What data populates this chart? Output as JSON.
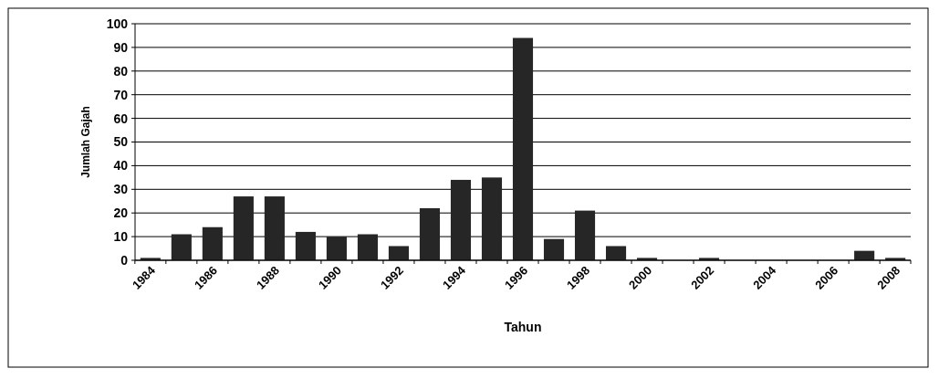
{
  "chart_data": {
    "type": "bar",
    "xlabel": "Tahun",
    "ylabel": "Jumlah Gajah",
    "categories": [
      "1984",
      null,
      "1986",
      null,
      "1988",
      null,
      "1990",
      null,
      "1992",
      null,
      "1994",
      null,
      "1996",
      null,
      "1998",
      null,
      "2000",
      null,
      "2002",
      null,
      "2004",
      null,
      "2006",
      null,
      "2008"
    ],
    "values": [
      1,
      11,
      14,
      27,
      27,
      12,
      10,
      11,
      6,
      22,
      34,
      35,
      94,
      9,
      21,
      6,
      1,
      0,
      1,
      0,
      0,
      0,
      0,
      4,
      1
    ],
    "color": "#262626",
    "ylim": [
      0,
      100
    ],
    "yticks": [
      0,
      10,
      20,
      30,
      40,
      50,
      60,
      70,
      80,
      90,
      100
    ],
    "grid": "y"
  }
}
